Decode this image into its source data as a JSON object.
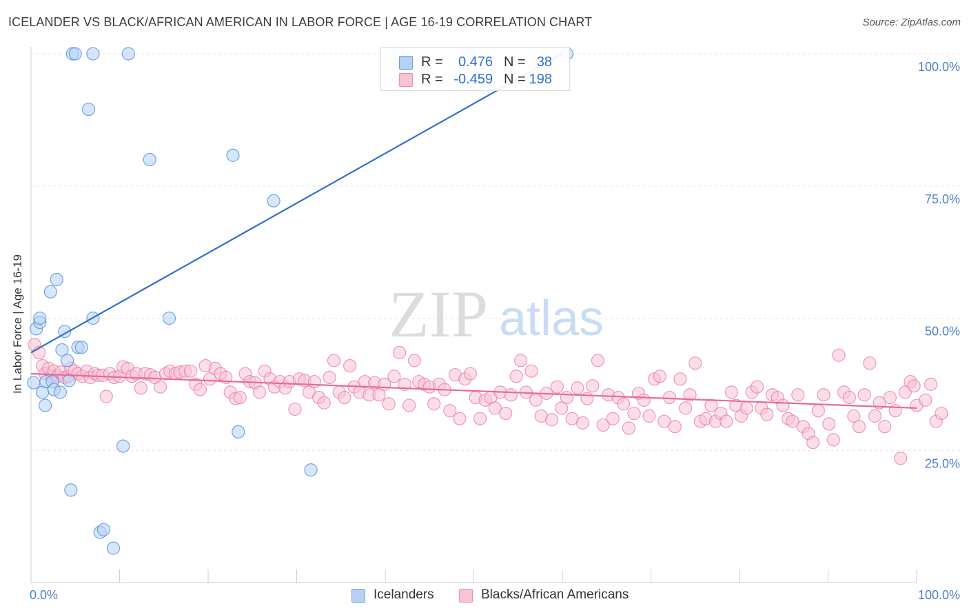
{
  "title": "ICELANDER VS BLACK/AFRICAN AMERICAN IN LABOR FORCE | AGE 16-19 CORRELATION CHART",
  "source": "Source: ZipAtlas.com",
  "watermark": {
    "zip": "ZIP",
    "atlas": "atlas"
  },
  "colors": {
    "blue": "#4f8fe0",
    "blue_fill": "#b7d1f5",
    "blue_line": "#2e6fd1",
    "pink": "#ec7ea4",
    "pink_fill": "#f7c3d6",
    "pink_line": "#e86a97",
    "axis_text": "#4a7fd1",
    "grid": "#e3e3e3"
  },
  "legend_top": {
    "rows": [
      {
        "r_label": "R =",
        "r_value": "0.476",
        "n_label": "N =",
        "n_value": "38"
      },
      {
        "r_label": "R =",
        "r_value": "-0.459",
        "n_label": "N =",
        "n_value": "198"
      }
    ]
  },
  "bottom_legend": {
    "series1": "Icelanders",
    "series2": "Blacks/African Americans"
  },
  "chart_data": {
    "type": "scatter",
    "title": "ICELANDER VS BLACK/AFRICAN AMERICAN IN LABOR FORCE | AGE 16-19 CORRELATION CHART",
    "xlabel": "",
    "ylabel": "In Labor Force | Age 16-19",
    "xlim": [
      0,
      100
    ],
    "ylim": [
      0,
      100
    ],
    "x_tick_labels": [
      "0.0%",
      "100.0%"
    ],
    "y_ticks": [
      25,
      50,
      75,
      100
    ],
    "y_tick_labels": [
      "25.0%",
      "50.0%",
      "75.0%",
      "100.0%"
    ],
    "grid": true,
    "series": [
      {
        "name": "Icelanders",
        "r": 0.476,
        "n": 38,
        "trend": {
          "x": [
            0,
            60
          ],
          "y": [
            43.5,
            100
          ]
        },
        "points": [
          [
            0.3,
            37.8
          ],
          [
            0.6,
            48
          ],
          [
            1.0,
            49.2
          ],
          [
            1.0,
            50
          ],
          [
            1.3,
            36
          ],
          [
            1.6,
            33.5
          ],
          [
            1.7,
            38
          ],
          [
            2.2,
            55
          ],
          [
            2.4,
            38
          ],
          [
            2.6,
            36.5
          ],
          [
            2.9,
            57.3
          ],
          [
            3.3,
            36
          ],
          [
            3.5,
            44
          ],
          [
            3.8,
            47.5
          ],
          [
            4.1,
            42
          ],
          [
            4.3,
            38.2
          ],
          [
            4.5,
            17.5
          ],
          [
            5.3,
            44.5
          ],
          [
            5.7,
            44.5
          ],
          [
            4.7,
            100
          ],
          [
            5.0,
            100
          ],
          [
            7.0,
            100
          ],
          [
            6.5,
            89.5
          ],
          [
            7.0,
            50
          ],
          [
            7.8,
            9.5
          ],
          [
            8.2,
            10
          ],
          [
            9.3,
            6.5
          ],
          [
            10.4,
            25.8
          ],
          [
            11.0,
            100
          ],
          [
            13.4,
            80
          ],
          [
            15.6,
            50
          ],
          [
            22.8,
            80.8
          ],
          [
            23.4,
            28.5
          ],
          [
            27.4,
            72.2
          ],
          [
            31.6,
            21.3
          ],
          [
            41.5,
            100
          ],
          [
            49.5,
            100
          ],
          [
            60.5,
            100
          ]
        ]
      },
      {
        "name": "Blacks/African Americans",
        "r": -0.459,
        "n": 198,
        "trend": {
          "x": [
            0,
            100
          ],
          "y": [
            39.5,
            33
          ]
        },
        "points": [
          [
            0.4,
            45
          ],
          [
            0.9,
            43.5
          ],
          [
            1.3,
            41
          ],
          [
            1.6,
            39.5
          ],
          [
            2.0,
            40.5
          ],
          [
            2.3,
            39
          ],
          [
            2.6,
            40
          ],
          [
            3.0,
            39
          ],
          [
            3.4,
            39.8
          ],
          [
            3.8,
            38.8
          ],
          [
            4.2,
            39
          ],
          [
            4.5,
            40.5
          ],
          [
            4.9,
            40
          ],
          [
            5.3,
            39.5
          ],
          [
            5.8,
            39
          ],
          [
            6.3,
            40
          ],
          [
            6.7,
            38.8
          ],
          [
            7.2,
            39.5
          ],
          [
            7.6,
            39.2
          ],
          [
            8.1,
            39.2
          ],
          [
            8.5,
            35.2
          ],
          [
            8.9,
            39.5
          ],
          [
            9.4,
            38.8
          ],
          [
            10.0,
            39
          ],
          [
            10.4,
            40.8
          ],
          [
            10.9,
            40.5
          ],
          [
            11.4,
            39
          ],
          [
            11.9,
            39.5
          ],
          [
            12.4,
            36.8
          ],
          [
            12.9,
            39.5
          ],
          [
            13.5,
            39.3
          ],
          [
            14.0,
            38.8
          ],
          [
            14.6,
            37
          ],
          [
            15.2,
            39.5
          ],
          [
            15.7,
            40
          ],
          [
            16.3,
            39.5
          ],
          [
            16.8,
            39.8
          ],
          [
            17.4,
            40
          ],
          [
            18.0,
            40
          ],
          [
            18.6,
            37.5
          ],
          [
            19.1,
            36.5
          ],
          [
            19.7,
            41
          ],
          [
            20.2,
            38.5
          ],
          [
            20.8,
            40.5
          ],
          [
            21.4,
            39.5
          ],
          [
            22.0,
            38.8
          ],
          [
            22.5,
            36
          ],
          [
            23.1,
            34.8
          ],
          [
            23.6,
            35
          ],
          [
            24.2,
            39.5
          ],
          [
            24.7,
            38
          ],
          [
            25.3,
            37.8
          ],
          [
            25.8,
            36
          ],
          [
            26.4,
            40
          ],
          [
            27.0,
            38.5
          ],
          [
            27.5,
            37
          ],
          [
            28.1,
            38
          ],
          [
            28.7,
            36.8
          ],
          [
            29.2,
            38
          ],
          [
            29.8,
            32.8
          ],
          [
            30.3,
            38.5
          ],
          [
            30.9,
            38.2
          ],
          [
            31.4,
            36
          ],
          [
            32.0,
            38
          ],
          [
            32.5,
            35
          ],
          [
            33.1,
            34
          ],
          [
            33.7,
            38.8
          ],
          [
            34.2,
            42
          ],
          [
            34.8,
            36
          ],
          [
            35.4,
            35
          ],
          [
            36.0,
            41
          ],
          [
            36.5,
            37
          ],
          [
            37.1,
            36
          ],
          [
            37.7,
            38
          ],
          [
            38.2,
            35.5
          ],
          [
            38.8,
            37.8
          ],
          [
            39.3,
            35.5
          ],
          [
            39.9,
            37.5
          ],
          [
            40.4,
            33.8
          ],
          [
            41.0,
            39
          ],
          [
            41.6,
            43.5
          ],
          [
            42.2,
            37.5
          ],
          [
            42.7,
            33.5
          ],
          [
            43.3,
            42
          ],
          [
            43.8,
            38
          ],
          [
            44.4,
            37.5
          ],
          [
            45.0,
            37
          ],
          [
            45.5,
            33.8
          ],
          [
            46.1,
            37.5
          ],
          [
            46.7,
            36.5
          ],
          [
            47.3,
            32.5
          ],
          [
            47.9,
            39.3
          ],
          [
            48.4,
            31
          ],
          [
            49.0,
            38.5
          ],
          [
            49.6,
            39.5
          ],
          [
            50.2,
            35
          ],
          [
            50.7,
            31
          ],
          [
            51.3,
            34.5
          ],
          [
            51.9,
            35
          ],
          [
            52.4,
            33
          ],
          [
            53.0,
            36
          ],
          [
            53.6,
            32
          ],
          [
            54.2,
            35.5
          ],
          [
            54.8,
            39
          ],
          [
            55.3,
            42
          ],
          [
            55.9,
            36
          ],
          [
            56.5,
            40
          ],
          [
            57.0,
            34.5
          ],
          [
            57.6,
            31.5
          ],
          [
            58.2,
            35.8
          ],
          [
            58.8,
            30.8
          ],
          [
            59.4,
            37
          ],
          [
            59.9,
            33
          ],
          [
            60.5,
            35
          ],
          [
            61.1,
            31
          ],
          [
            61.7,
            36.8
          ],
          [
            62.3,
            30.2
          ],
          [
            62.8,
            34.8
          ],
          [
            63.4,
            37.2
          ],
          [
            64.0,
            42
          ],
          [
            64.6,
            29.8
          ],
          [
            65.2,
            35.5
          ],
          [
            65.7,
            31
          ],
          [
            66.3,
            35
          ],
          [
            66.9,
            33.8
          ],
          [
            67.5,
            29.2
          ],
          [
            68.1,
            32
          ],
          [
            68.6,
            35.8
          ],
          [
            69.2,
            34.5
          ],
          [
            69.8,
            31.5
          ],
          [
            70.4,
            38.5
          ],
          [
            71.0,
            39
          ],
          [
            71.5,
            30.5
          ],
          [
            72.1,
            35
          ],
          [
            72.7,
            29.5
          ],
          [
            73.3,
            38.5
          ],
          [
            73.9,
            33
          ],
          [
            74.4,
            35.5
          ],
          [
            75.0,
            41.5
          ],
          [
            75.6,
            30.5
          ],
          [
            76.2,
            31
          ],
          [
            76.8,
            33.5
          ],
          [
            77.3,
            30.5
          ],
          [
            77.9,
            32
          ],
          [
            78.5,
            30.5
          ],
          [
            79.1,
            36
          ],
          [
            79.6,
            33.5
          ],
          [
            80.2,
            31.5
          ],
          [
            80.8,
            33
          ],
          [
            81.4,
            36
          ],
          [
            82.0,
            37
          ],
          [
            82.5,
            33
          ],
          [
            83.1,
            31.8
          ],
          [
            83.7,
            35.5
          ],
          [
            84.3,
            35
          ],
          [
            84.9,
            33.5
          ],
          [
            85.5,
            31
          ],
          [
            86.0,
            30.5
          ],
          [
            86.6,
            35.5
          ],
          [
            87.2,
            29.5
          ],
          [
            87.8,
            28.2
          ],
          [
            88.3,
            26.5
          ],
          [
            88.9,
            32.5
          ],
          [
            89.5,
            35.5
          ],
          [
            90.1,
            30
          ],
          [
            90.6,
            27
          ],
          [
            91.2,
            43
          ],
          [
            91.8,
            36
          ],
          [
            92.4,
            35
          ],
          [
            92.9,
            31.5
          ],
          [
            93.5,
            29.5
          ],
          [
            94.1,
            35.5
          ],
          [
            94.7,
            41.5
          ],
          [
            95.3,
            31.5
          ],
          [
            95.8,
            34
          ],
          [
            96.4,
            29.5
          ],
          [
            97.0,
            35
          ],
          [
            97.6,
            32.5
          ],
          [
            98.2,
            23.5
          ],
          [
            98.7,
            36
          ],
          [
            99.3,
            38
          ],
          [
            99.7,
            37.2
          ],
          [
            100.0,
            33.5
          ],
          [
            101.0,
            34.5
          ],
          [
            101.6,
            37.5
          ],
          [
            102.2,
            30.5
          ],
          [
            102.8,
            32
          ]
        ]
      }
    ]
  }
}
